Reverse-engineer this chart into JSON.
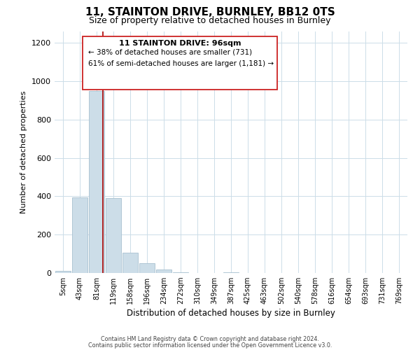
{
  "title": "11, STAINTON DRIVE, BURNLEY, BB12 0TS",
  "subtitle": "Size of property relative to detached houses in Burnley",
  "xlabel": "Distribution of detached houses by size in Burnley",
  "ylabel": "Number of detached properties",
  "bar_labels": [
    "5sqm",
    "43sqm",
    "81sqm",
    "119sqm",
    "158sqm",
    "196sqm",
    "234sqm",
    "272sqm",
    "310sqm",
    "349sqm",
    "387sqm",
    "425sqm",
    "463sqm",
    "502sqm",
    "540sqm",
    "578sqm",
    "616sqm",
    "654sqm",
    "693sqm",
    "731sqm",
    "769sqm"
  ],
  "bar_values": [
    10,
    395,
    950,
    390,
    105,
    52,
    20,
    5,
    0,
    0,
    5,
    0,
    0,
    0,
    0,
    0,
    0,
    0,
    0,
    0,
    0
  ],
  "bar_color": "#ccdde8",
  "bar_edge_color": "#a8c0d0",
  "property_line_color": "#aa0000",
  "ylim": [
    0,
    1260
  ],
  "yticks": [
    0,
    200,
    400,
    600,
    800,
    1000,
    1200
  ],
  "annotation_title": "11 STAINTON DRIVE: 96sqm",
  "annotation_line1": "← 38% of detached houses are smaller (731)",
  "annotation_line2": "61% of semi-detached houses are larger (1,181) →",
  "footnote1": "Contains HM Land Registry data © Crown copyright and database right 2024.",
  "footnote2": "Contains public sector information licensed under the Open Government Licence v3.0.",
  "background_color": "#ffffff",
  "title_fontsize": 11,
  "subtitle_fontsize": 9
}
